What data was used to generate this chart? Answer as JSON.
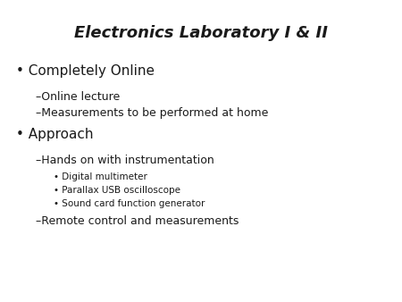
{
  "title": "Electronics Laboratory I & II",
  "background_color": "#ffffff",
  "text_color": "#1a1a1a",
  "title_fontsize": 13,
  "bullet1_text": "• Completely Online",
  "bullet1_fontsize": 11,
  "sub1a_text": "–Online lecture",
  "sub1b_text": "–Measurements to be performed at home",
  "sub_fontsize": 9,
  "bullet2_text": "• Approach",
  "bullet2_fontsize": 11,
  "sub2a_text": "–Hands on with instrumentation",
  "sub2a_fontsize": 9,
  "sub2b1_text": "• Digital multimeter",
  "sub2b2_text": "• Parallax USB oscilloscope",
  "sub2b3_text": "• Sound card function generator",
  "sub2b_fontsize": 7.5,
  "sub2c_text": "–Remote control and measurements",
  "sub2c_fontsize": 9
}
